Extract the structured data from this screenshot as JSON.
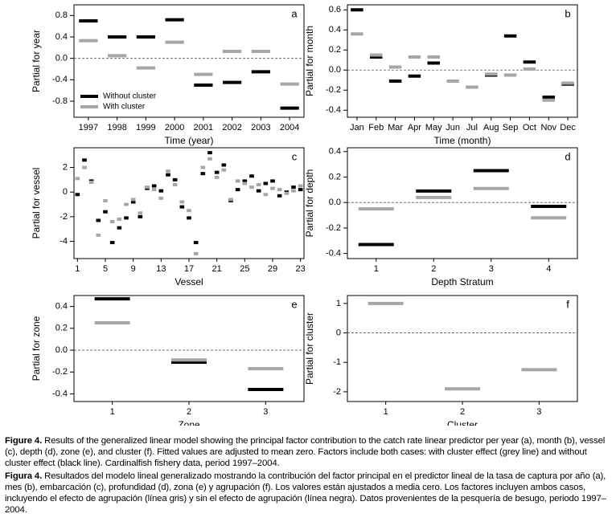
{
  "chart_data": [
    {
      "type": "dash",
      "panel": "a",
      "xlabel": "Time (year)",
      "ylabel": "Partial for year",
      "categories": [
        "1997",
        "1998",
        "1999",
        "2000",
        "2001",
        "2002",
        "2003",
        "2004"
      ],
      "series": [
        {
          "name": "Without cluster",
          "color": "#000000",
          "values": [
            0.7,
            0.4,
            0.4,
            0.72,
            -0.5,
            -0.45,
            -0.25,
            -0.93
          ]
        },
        {
          "name": "With cluster",
          "color": "#a6a6a6",
          "values": [
            0.33,
            0.05,
            -0.18,
            0.3,
            -0.3,
            0.13,
            0.13,
            -0.48
          ]
        }
      ],
      "ylim": [
        -1.1,
        1.0
      ],
      "yticks": [
        -0.8,
        -0.4,
        {
          "value": 0,
          "label": "0.0"
        },
        0.4,
        0.8
      ],
      "reference_line": 0,
      "legend": "lower left"
    },
    {
      "type": "dash",
      "panel": "b",
      "xlabel": "Time (month)",
      "ylabel": "Partial for month",
      "categories": [
        "Jan",
        "Feb",
        "Mar",
        "Apr",
        "May",
        "Jun",
        "Jul",
        "Aug",
        "Sep",
        "Oct",
        "Nov",
        "Dec"
      ],
      "series": [
        {
          "color": "#000000",
          "values": [
            0.6,
            0.13,
            -0.11,
            -0.06,
            0.07,
            null,
            null,
            -0.05,
            0.34,
            0.08,
            -0.27,
            -0.14
          ]
        },
        {
          "color": "#a6a6a6",
          "values": [
            0.36,
            0.15,
            0.03,
            0.13,
            0.13,
            -0.11,
            -0.17,
            -0.04,
            -0.05,
            0.01,
            -0.3,
            -0.13
          ]
        }
      ],
      "ylim": [
        -0.47,
        0.65
      ],
      "yticks": [
        -0.4,
        -0.2,
        {
          "value": 0,
          "label": "0.0"
        },
        0.2,
        0.4,
        0.6
      ],
      "reference_line": 0
    },
    {
      "type": "dash",
      "panel": "c",
      "xlabel": "Vessel",
      "ylabel": "Partial for vessel",
      "categories": [
        "1",
        null,
        null,
        null,
        "5",
        null,
        null,
        null,
        "9",
        null,
        null,
        null,
        "13",
        null,
        null,
        null,
        "17",
        null,
        null,
        null,
        "21",
        null,
        null,
        null,
        "25",
        null,
        null,
        null,
        "29",
        null,
        null,
        null,
        "23"
      ],
      "series": [
        {
          "color": "#000000",
          "values": [
            -0.2,
            2.6,
            0.9,
            -2.3,
            -1.6,
            -4.1,
            -2.9,
            -2.1,
            -0.8,
            -2.0,
            0.3,
            0.5,
            0.1,
            1.4,
            1.0,
            -1.2,
            -2.1,
            -4.1,
            1.5,
            3.2,
            1.6,
            2.2,
            -0.7,
            0.2,
            0.9,
            1.3,
            0.1,
            0.7,
            0.9,
            -0.3,
            0.0,
            0.4,
            0.2
          ]
        },
        {
          "color": "#a6a6a6",
          "values": [
            1.1,
            2.0,
            0.8,
            -3.5,
            -0.7,
            -2.4,
            -2.2,
            -1.0,
            -0.6,
            -1.7,
            0.4,
            0.2,
            -0.5,
            1.7,
            0.6,
            -0.8,
            -1.5,
            -5.0,
            2.0,
            2.7,
            1.2,
            1.8,
            -0.6,
            0.9,
            0.7,
            0.4,
            0.6,
            -0.2,
            0.3,
            0.2,
            -0.1,
            0.1,
            0.5
          ]
        }
      ],
      "ylim": [
        -5.4,
        3.6
      ],
      "yticks": [
        -4,
        -2,
        0,
        2
      ]
    },
    {
      "type": "dash",
      "panel": "d",
      "xlabel": "Depth Stratum",
      "ylabel": "Partial for depth",
      "categories": [
        "1",
        "2",
        "3",
        "4"
      ],
      "series": [
        {
          "color": "#000000",
          "values": [
            -0.33,
            0.09,
            0.25,
            -0.03
          ]
        },
        {
          "color": "#a6a6a6",
          "values": [
            -0.05,
            0.04,
            0.11,
            -0.12
          ]
        }
      ],
      "ylim": [
        -0.44,
        0.43
      ],
      "yticks": [
        -0.4,
        -0.2,
        {
          "value": 0,
          "label": "0.0"
        },
        0.2,
        0.4
      ],
      "reference_line": 0
    },
    {
      "type": "dash",
      "panel": "e",
      "xlabel": "Zone",
      "ylabel": "Partial for zone",
      "categories": [
        "1",
        "2",
        "3"
      ],
      "series": [
        {
          "color": "#000000",
          "values": [
            0.47,
            -0.11,
            -0.36
          ]
        },
        {
          "color": "#a6a6a6",
          "values": [
            0.25,
            -0.09,
            -0.17
          ]
        }
      ],
      "ylim": [
        -0.47,
        0.5
      ],
      "yticks": [
        -0.4,
        -0.2,
        {
          "value": 0,
          "label": "0.0"
        },
        0.2,
        0.4
      ],
      "reference_line": 0
    },
    {
      "type": "dash",
      "panel": "f",
      "xlabel": "Cluster",
      "ylabel": "Partial for cluster",
      "categories": [
        "1",
        "2",
        "3"
      ],
      "series": [
        {
          "color": "#a6a6a6",
          "values": [
            1.0,
            -1.9,
            -1.25
          ]
        }
      ],
      "ylim": [
        -2.33,
        1.27
      ],
      "yticks": [
        -2,
        -1,
        0,
        1
      ],
      "reference_line": 0
    }
  ],
  "caption": [
    {
      "label": "Figure 4.",
      "text": "Results of the generalized linear model showing the principal factor contribution to the catch rate linear predictor per year (a), month (b), vessel (c), depth (d), zone (e), and cluster (f). Fitted values are adjusted to mean zero. Factors include both cases: with cluster effect (grey line) and without cluster effect (black line). Cardinalfish fishery data, period 1997–2004."
    },
    {
      "label": "Figura 4.",
      "text": "Resultados del modelo lineal generalizado mostrando la contribución del factor principal en el predictor lineal de la tasa de captura por año (a), mes (b), embarcación (c), profundidad (d), zona (e) y agrupación (f). Los valores están ajustados a media cero. Los factores incluyen ambos casos, incluyendo el efecto de agrupación (línea gris) y sin el efecto de agrupación (línea negra). Datos provenientes de la pesquería de besugo, periodo 1997–2004."
    }
  ]
}
